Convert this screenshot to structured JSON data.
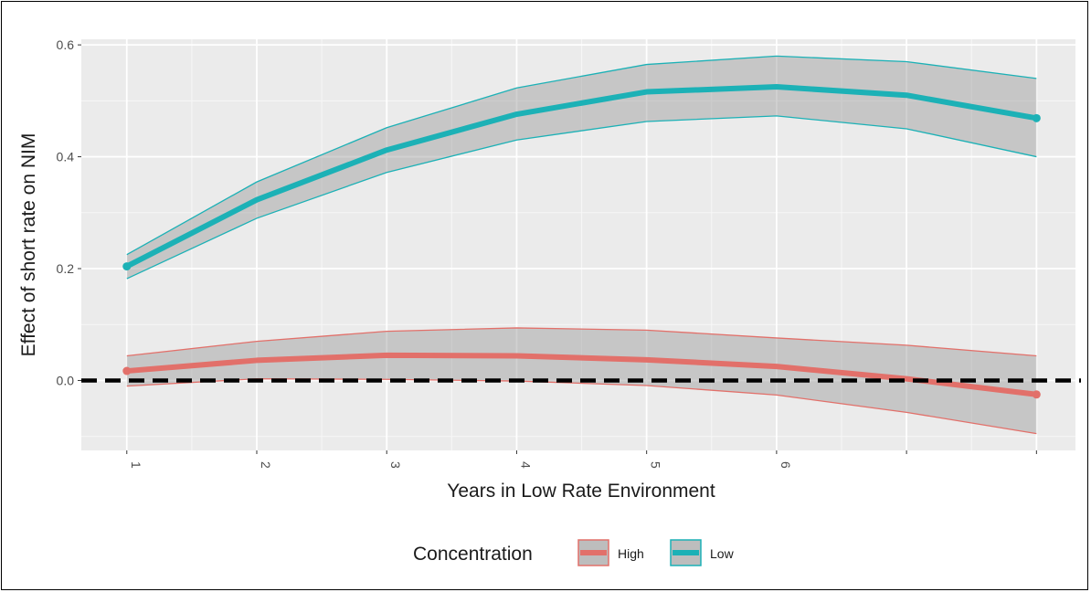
{
  "chart_data": {
    "type": "line",
    "title": "",
    "xlabel": "Years in Low Rate Environment",
    "ylabel": "Effect of short rate on NIM",
    "x_tick_labels": [
      "1",
      "2",
      "3",
      "4",
      "5",
      "6"
    ],
    "y_tick_labels": [
      "0.0",
      "0.2",
      "0.4",
      "0.6"
    ],
    "xlim": [
      0.65,
      8.3
    ],
    "ylim": [
      -0.125,
      0.61
    ],
    "grid": true,
    "legend_title": "Concentration",
    "legend_position": "bottom",
    "reference_line": {
      "y": 0,
      "style": "dashed",
      "color": "#000000"
    },
    "series": [
      {
        "name": "High",
        "color": "#E2706A",
        "x": [
          1,
          2,
          3,
          4,
          5,
          6,
          7,
          8
        ],
        "values": [
          0.017,
          0.036,
          0.045,
          0.044,
          0.037,
          0.025,
          0.003,
          -0.025
        ],
        "lower": [
          -0.01,
          0.003,
          0.002,
          -0.001,
          -0.009,
          -0.026,
          -0.057,
          -0.095
        ],
        "upper": [
          0.044,
          0.07,
          0.088,
          0.094,
          0.09,
          0.076,
          0.063,
          0.044
        ]
      },
      {
        "name": "Low",
        "color": "#1CB1B6",
        "x": [
          1,
          2,
          3,
          4,
          5,
          6,
          7,
          8
        ],
        "values": [
          0.204,
          0.323,
          0.412,
          0.476,
          0.516,
          0.525,
          0.51,
          0.469
        ],
        "lower": [
          0.182,
          0.29,
          0.372,
          0.43,
          0.463,
          0.473,
          0.45,
          0.4
        ],
        "upper": [
          0.225,
          0.355,
          0.452,
          0.523,
          0.565,
          0.58,
          0.57,
          0.54
        ]
      }
    ]
  }
}
